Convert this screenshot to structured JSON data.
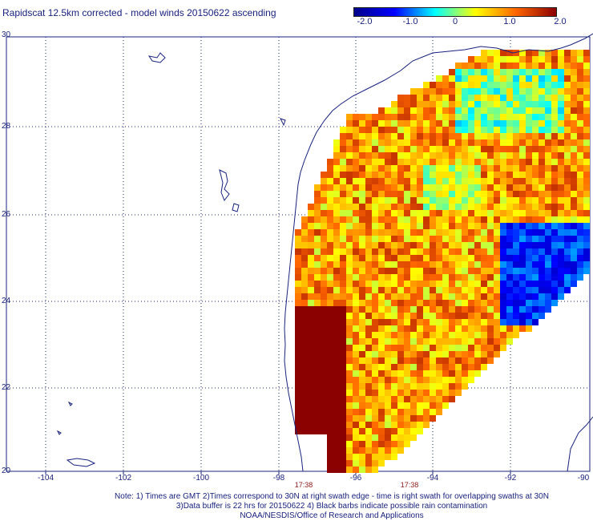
{
  "title": "Rapidscat 12.5km corrected - model winds 20150622 ascending",
  "colorbar": {
    "labels": [
      "-2.0",
      "-1.0",
      "0",
      "1.0",
      "2.0"
    ],
    "colors": [
      "#00008b",
      "#0000ff",
      "#00ffff",
      "#ffff00",
      "#ff6600",
      "#8b0000"
    ]
  },
  "axes": {
    "lat_labels": [
      "30",
      "28",
      "26",
      "24",
      "22",
      "20"
    ],
    "lon_labels": [
      "-104",
      "-102",
      "-100",
      "-98",
      "-96",
      "-94",
      "-92",
      "-90"
    ]
  },
  "time_labels": [
    "17:38",
    "17:38"
  ],
  "notes": [
    "Note: 1) Times are GMT 2)Times correspond to 30N at right swath edge - time is right swath for overlapping swaths at 30N",
    "3)Data buffer is 22 hrs for 20150622 4) Black barbs indicate possible rain contamination",
    "NOAA/NESDIS/Office of Research and Applications"
  ],
  "colors": {
    "text": "#1a237e",
    "coast": "#1a237e",
    "time": "#8b1a1a"
  }
}
